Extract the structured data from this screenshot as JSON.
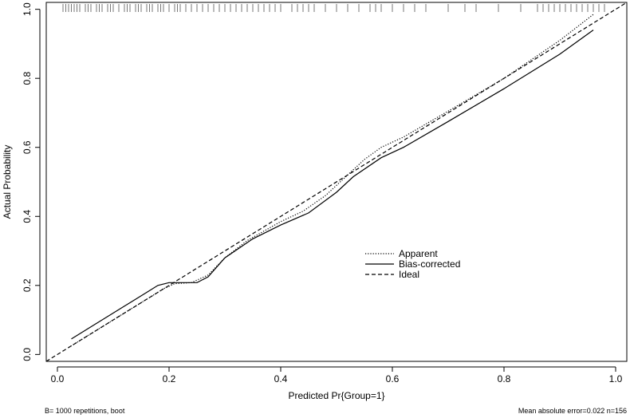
{
  "chart_data": {
    "type": "line",
    "xlabel": "Predicted Pr{Group=1}",
    "ylabel": "Actual Probability",
    "xlim": [
      -0.02,
      1.02
    ],
    "ylim": [
      -0.02,
      1.02
    ],
    "x_ticks": [
      0.0,
      0.2,
      0.4,
      0.6,
      0.8,
      1.0
    ],
    "y_ticks": [
      0.0,
      0.2,
      0.4,
      0.6,
      0.8,
      1.0
    ],
    "x_tick_labels": [
      "0.0",
      "0.2",
      "0.4",
      "0.6",
      "0.8",
      "1.0"
    ],
    "y_tick_labels": [
      "0.0",
      "0.2",
      "0.4",
      "0.6",
      "0.8",
      "1.0"
    ],
    "legend_position": "center-right",
    "series": [
      {
        "name": "Apparent",
        "style": "dotted",
        "x": [
          0.02,
          0.07,
          0.12,
          0.16,
          0.19,
          0.21,
          0.24,
          0.27,
          0.3,
          0.34,
          0.4,
          0.44,
          0.48,
          0.52,
          0.55,
          0.58,
          0.62,
          0.7,
          0.8,
          0.9,
          0.96
        ],
        "y": [
          0.02,
          0.07,
          0.12,
          0.16,
          0.19,
          0.205,
          0.208,
          0.23,
          0.28,
          0.33,
          0.385,
          0.415,
          0.46,
          0.52,
          0.565,
          0.6,
          0.63,
          0.705,
          0.8,
          0.91,
          0.985
        ]
      },
      {
        "name": "Bias-corrected",
        "style": "solid",
        "x": [
          0.025,
          0.07,
          0.12,
          0.16,
          0.18,
          0.2,
          0.22,
          0.25,
          0.27,
          0.3,
          0.35,
          0.4,
          0.45,
          0.5,
          0.53,
          0.58,
          0.62,
          0.7,
          0.8,
          0.9,
          0.96
        ],
        "y": [
          0.045,
          0.09,
          0.14,
          0.18,
          0.2,
          0.208,
          0.208,
          0.208,
          0.225,
          0.28,
          0.335,
          0.375,
          0.41,
          0.47,
          0.515,
          0.57,
          0.6,
          0.675,
          0.77,
          0.87,
          0.94
        ]
      },
      {
        "name": "Ideal",
        "style": "dashed",
        "x": [
          -0.02,
          1.02
        ],
        "y": [
          -0.02,
          1.02
        ]
      }
    ],
    "rug": [
      0.01,
      0.015,
      0.02,
      0.025,
      0.03,
      0.035,
      0.04,
      0.05,
      0.055,
      0.06,
      0.07,
      0.075,
      0.08,
      0.09,
      0.095,
      0.1,
      0.11,
      0.12,
      0.125,
      0.13,
      0.14,
      0.145,
      0.15,
      0.16,
      0.165,
      0.17,
      0.18,
      0.185,
      0.19,
      0.2,
      0.21,
      0.215,
      0.22,
      0.23,
      0.24,
      0.25,
      0.26,
      0.27,
      0.28,
      0.29,
      0.3,
      0.31,
      0.32,
      0.33,
      0.34,
      0.35,
      0.36,
      0.37,
      0.38,
      0.39,
      0.4,
      0.42,
      0.43,
      0.44,
      0.45,
      0.46,
      0.48,
      0.5,
      0.52,
      0.54,
      0.56,
      0.57,
      0.58,
      0.6,
      0.62,
      0.64,
      0.66,
      0.7,
      0.73,
      0.75,
      0.79,
      0.83,
      0.86,
      0.87,
      0.88,
      0.89,
      0.9,
      0.91,
      0.92,
      0.93,
      0.94,
      0.95,
      0.96,
      0.97,
      0.98
    ],
    "footnote_left": "B= 1000 repetitions, boot",
    "footnote_right": "Mean absolute error=0.022 n=156"
  }
}
